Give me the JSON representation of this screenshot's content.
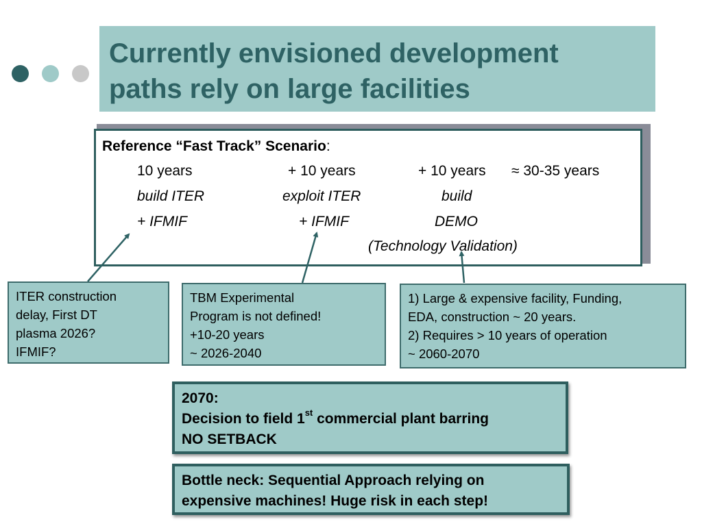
{
  "colors": {
    "dot_1": "#2e6264",
    "dot_2": "#9fcac8",
    "dot_3": "#c8c8c8",
    "title_background": "#9fcac8",
    "title_text": "#2e6264",
    "note_background": "#9fcac8",
    "border": "#2e5e5e",
    "arrow": "#2e6264"
  },
  "decorations": {
    "dot_icons": [
      "dark-teal-dot-icon",
      "light-teal-dot-icon",
      "gray-dot-icon"
    ]
  },
  "title": {
    "line1": "Currently envisioned development",
    "line2": "paths rely on large facilities"
  },
  "scenario": {
    "heading": "Reference “Fast Track” Scenario",
    "heading_suffix": ":",
    "row_durations": [
      "10 years",
      "+ 10 years",
      "+ 10 years",
      "≈ 30-35 years"
    ],
    "row_actions": [
      "build ITER",
      "exploit ITER",
      "build"
    ],
    "row_facilities": [
      "+ IFMIF",
      "+ IFMIF",
      "DEMO"
    ],
    "row_note": "(Technology Validation)"
  },
  "notes": [
    {
      "lines": [
        "ITER construction",
        "delay, First DT",
        "plasma 2026?",
        "IFMIF?"
      ]
    },
    {
      "lines": [
        "TBM Experimental",
        "Program is not defined!",
        "+10-20 years",
        "~ 2026-2040"
      ]
    },
    {
      "lines": [
        "1) Large & expensive facility, Funding,",
        "EDA, construction ~ 20 years.",
        "2) Requires > 10 years of operation",
        "~ 2060-2070"
      ]
    }
  ],
  "decision": {
    "year": "2070:",
    "text_before": "Decision to field 1",
    "superscript": "st",
    "text_after": " commercial plant barring",
    "line3": "NO SETBACK"
  },
  "bottleneck": {
    "line1": "Bottle neck:  Sequential Approach relying on",
    "line2": "expensive machines!  Huge risk in each step!"
  }
}
